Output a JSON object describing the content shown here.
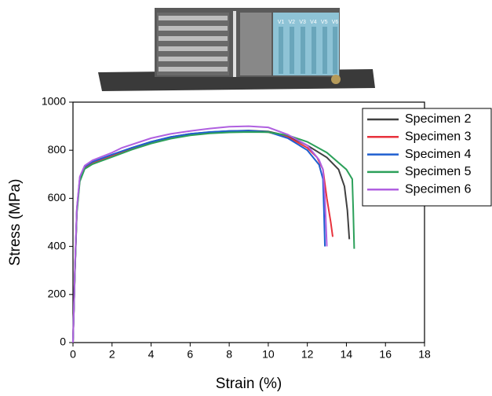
{
  "photo_labels": [
    "V1",
    "V2",
    "V3",
    "V4",
    "V5",
    "V6"
  ],
  "chart_data": {
    "type": "line",
    "xlabel": "Strain (%)",
    "ylabel": "Stress (MPa)",
    "xlim": [
      0,
      18
    ],
    "xticks": [
      0,
      2,
      4,
      6,
      8,
      10,
      12,
      14,
      16,
      18
    ],
    "ylim": [
      0,
      1000
    ],
    "yticks": [
      0,
      200,
      400,
      600,
      800,
      1000
    ],
    "legend": "upper right",
    "series": [
      {
        "name": "Specimen 2",
        "color": "#404040",
        "x": [
          0,
          0.1,
          0.2,
          0.35,
          0.6,
          1,
          2,
          3,
          4,
          5,
          6,
          7,
          8,
          9,
          10,
          11,
          12,
          13,
          13.6,
          13.9,
          14.05,
          14.15
        ],
        "values": [
          0,
          300,
          550,
          680,
          730,
          750,
          780,
          810,
          835,
          855,
          868,
          875,
          880,
          882,
          878,
          860,
          820,
          770,
          720,
          650,
          550,
          430
        ]
      },
      {
        "name": "Specimen 3",
        "color": "#e8323c",
        "x": [
          0,
          0.1,
          0.2,
          0.35,
          0.6,
          1,
          2,
          3,
          4,
          5,
          6,
          7,
          8,
          9,
          10,
          11,
          12,
          12.5,
          12.8,
          13.0,
          13.2,
          13.3
        ],
        "values": [
          0,
          300,
          550,
          680,
          728,
          748,
          778,
          808,
          833,
          853,
          866,
          874,
          879,
          880,
          875,
          855,
          810,
          770,
          720,
          600,
          500,
          440
        ]
      },
      {
        "name": "Specimen 4",
        "color": "#1f5fd0",
        "x": [
          0,
          0.1,
          0.2,
          0.35,
          0.6,
          1,
          2,
          3,
          4,
          5,
          6,
          7,
          8,
          9,
          10,
          11,
          12,
          12.6,
          12.8,
          12.85,
          12.9
        ],
        "values": [
          0,
          300,
          555,
          685,
          732,
          752,
          782,
          810,
          835,
          855,
          868,
          876,
          880,
          881,
          876,
          850,
          800,
          740,
          680,
          550,
          400
        ]
      },
      {
        "name": "Specimen 5",
        "color": "#2ca05a",
        "x": [
          0,
          0.1,
          0.2,
          0.35,
          0.6,
          1,
          2,
          3,
          4,
          5,
          6,
          7,
          8,
          9,
          10,
          11,
          12,
          13,
          14,
          14.3,
          14.35,
          14.4
        ],
        "values": [
          0,
          290,
          540,
          670,
          722,
          742,
          772,
          802,
          828,
          848,
          862,
          870,
          874,
          876,
          875,
          862,
          835,
          790,
          720,
          680,
          550,
          390
        ]
      },
      {
        "name": "Specimen 6",
        "color": "#b060e0",
        "x": [
          0,
          0.1,
          0.2,
          0.35,
          0.6,
          1,
          2,
          2.5,
          4,
          5,
          6,
          7,
          8,
          9,
          10,
          11,
          12,
          12.6,
          12.8,
          12.9,
          13.0
        ],
        "values": [
          0,
          310,
          560,
          690,
          736,
          758,
          790,
          810,
          850,
          868,
          880,
          890,
          898,
          900,
          895,
          865,
          820,
          760,
          720,
          600,
          400
        ]
      }
    ]
  }
}
